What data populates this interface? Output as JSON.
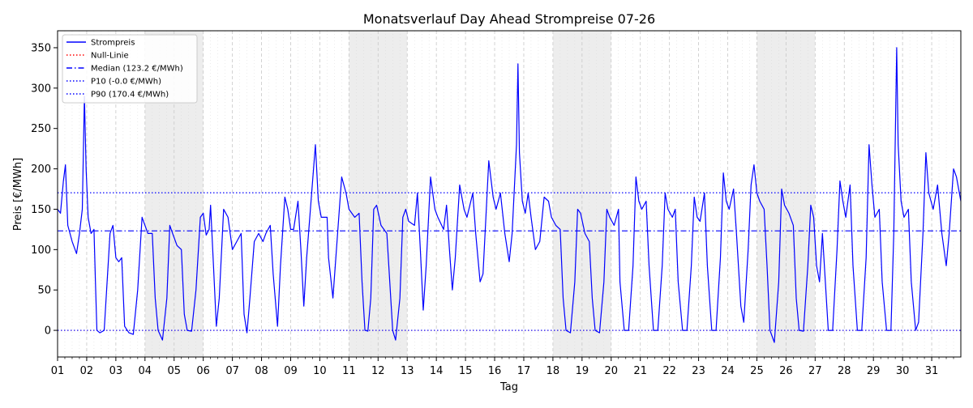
{
  "chart_data": {
    "type": "line",
    "title": "Monatsverlauf Day Ahead Strompreise 07-26",
    "xlabel": "Tag",
    "ylabel": "Preis [€/MWh]",
    "xlim": [
      1,
      32
    ],
    "ylim": [
      -33,
      371
    ],
    "y_ticks": [
      0,
      50,
      100,
      150,
      200,
      250,
      300,
      350
    ],
    "x_tick_labels": [
      "01",
      "02",
      "03",
      "04",
      "05",
      "06",
      "07",
      "08",
      "09",
      "10",
      "11",
      "12",
      "13",
      "14",
      "15",
      "16",
      "17",
      "18",
      "19",
      "20",
      "21",
      "22",
      "23",
      "24",
      "25",
      "26",
      "27",
      "28",
      "29",
      "30",
      "31"
    ],
    "grid": "dashed vertical day lines, dotted minor grid",
    "weekend_shading": [
      [
        4,
        6
      ],
      [
        11,
        13
      ],
      [
        18,
        20
      ],
      [
        25,
        27
      ]
    ],
    "legend_position": "top-left",
    "legend": [
      {
        "label": "Strompreis",
        "color": "#0000ff",
        "style": "solid"
      },
      {
        "label": "Null-Linie",
        "color": "#ff0000",
        "style": "dotted"
      },
      {
        "label": "Median (123.2 €/MWh)",
        "color": "#0000ff",
        "style": "dashdot"
      },
      {
        "label": "P10 (-0.0 €/MWh)",
        "color": "#0000ff",
        "style": "dotted"
      },
      {
        "label": "P90 (170.4 €/MWh)",
        "color": "#0000ff",
        "style": "dotted"
      }
    ],
    "reference_lines": [
      {
        "name": "Null-Linie",
        "y": 0,
        "color": "#ff0000",
        "style": "dotted"
      },
      {
        "name": "Median",
        "y": 123.2,
        "color": "#0000ff",
        "style": "dashdot"
      },
      {
        "name": "P10",
        "y": 0,
        "color": "#0000ff",
        "style": "dotted"
      },
      {
        "name": "P90",
        "y": 170.4,
        "color": "#0000ff",
        "style": "dotted"
      }
    ],
    "series": [
      {
        "name": "Strompreis",
        "color": "#0000ff",
        "points": [
          [
            1.0,
            150
          ],
          [
            1.1,
            145
          ],
          [
            1.2,
            185
          ],
          [
            1.27,
            205
          ],
          [
            1.35,
            130
          ],
          [
            1.5,
            110
          ],
          [
            1.65,
            95
          ],
          [
            1.75,
            120
          ],
          [
            1.85,
            150
          ],
          [
            1.92,
            290
          ],
          [
            1.98,
            200
          ],
          [
            2.05,
            140
          ],
          [
            2.15,
            120
          ],
          [
            2.25,
            125
          ],
          [
            2.3,
            60
          ],
          [
            2.35,
            0
          ],
          [
            2.45,
            -3
          ],
          [
            2.6,
            0
          ],
          [
            2.7,
            60
          ],
          [
            2.8,
            120
          ],
          [
            2.9,
            130
          ],
          [
            3.0,
            90
          ],
          [
            3.1,
            85
          ],
          [
            3.2,
            90
          ],
          [
            3.3,
            5
          ],
          [
            3.45,
            -3
          ],
          [
            3.6,
            -5
          ],
          [
            3.75,
            50
          ],
          [
            3.9,
            140
          ],
          [
            4.0,
            130
          ],
          [
            4.1,
            120
          ],
          [
            4.25,
            120
          ],
          [
            4.35,
            40
          ],
          [
            4.45,
            0
          ],
          [
            4.6,
            -12
          ],
          [
            4.75,
            40
          ],
          [
            4.85,
            130
          ],
          [
            4.95,
            120
          ],
          [
            5.1,
            105
          ],
          [
            5.25,
            100
          ],
          [
            5.35,
            20
          ],
          [
            5.45,
            0
          ],
          [
            5.6,
            -1
          ],
          [
            5.75,
            50
          ],
          [
            5.9,
            140
          ],
          [
            6.0,
            145
          ],
          [
            6.1,
            118
          ],
          [
            6.2,
            125
          ],
          [
            6.25,
            155
          ],
          [
            6.35,
            80
          ],
          [
            6.45,
            5
          ],
          [
            6.55,
            40
          ],
          [
            6.7,
            150
          ],
          [
            6.85,
            140
          ],
          [
            7.0,
            100
          ],
          [
            7.15,
            110
          ],
          [
            7.3,
            120
          ],
          [
            7.4,
            20
          ],
          [
            7.5,
            -3
          ],
          [
            7.6,
            40
          ],
          [
            7.75,
            110
          ],
          [
            7.9,
            120
          ],
          [
            8.05,
            110
          ],
          [
            8.15,
            120
          ],
          [
            8.3,
            130
          ],
          [
            8.4,
            70
          ],
          [
            8.55,
            5
          ],
          [
            8.65,
            80
          ],
          [
            8.8,
            165
          ],
          [
            8.9,
            150
          ],
          [
            9.0,
            125
          ],
          [
            9.1,
            125
          ],
          [
            9.25,
            160
          ],
          [
            9.35,
            100
          ],
          [
            9.45,
            30
          ],
          [
            9.55,
            90
          ],
          [
            9.7,
            160
          ],
          [
            9.85,
            230
          ],
          [
            9.95,
            160
          ],
          [
            10.05,
            140
          ],
          [
            10.25,
            140
          ],
          [
            10.3,
            90
          ],
          [
            10.45,
            40
          ],
          [
            10.55,
            90
          ],
          [
            10.75,
            190
          ],
          [
            10.9,
            170
          ],
          [
            11.0,
            150
          ],
          [
            11.2,
            140
          ],
          [
            11.35,
            145
          ],
          [
            11.45,
            60
          ],
          [
            11.55,
            0
          ],
          [
            11.65,
            -1
          ],
          [
            11.75,
            40
          ],
          [
            11.85,
            150
          ],
          [
            11.95,
            155
          ],
          [
            12.1,
            130
          ],
          [
            12.3,
            120
          ],
          [
            12.4,
            60
          ],
          [
            12.5,
            0
          ],
          [
            12.6,
            -12
          ],
          [
            12.75,
            40
          ],
          [
            12.85,
            140
          ],
          [
            12.95,
            150
          ],
          [
            13.05,
            135
          ],
          [
            13.25,
            130
          ],
          [
            13.35,
            170
          ],
          [
            13.45,
            100
          ],
          [
            13.55,
            25
          ],
          [
            13.65,
            80
          ],
          [
            13.8,
            190
          ],
          [
            13.95,
            150
          ],
          [
            14.05,
            140
          ],
          [
            14.25,
            125
          ],
          [
            14.35,
            155
          ],
          [
            14.45,
            100
          ],
          [
            14.55,
            50
          ],
          [
            14.65,
            90
          ],
          [
            14.8,
            180
          ],
          [
            14.95,
            150
          ],
          [
            15.05,
            140
          ],
          [
            15.25,
            170
          ],
          [
            15.35,
            120
          ],
          [
            15.5,
            60
          ],
          [
            15.6,
            70
          ],
          [
            15.8,
            210
          ],
          [
            15.95,
            165
          ],
          [
            16.05,
            150
          ],
          [
            16.2,
            170
          ],
          [
            16.35,
            120
          ],
          [
            16.5,
            85
          ],
          [
            16.6,
            120
          ],
          [
            16.75,
            230
          ],
          [
            16.8,
            330
          ],
          [
            16.85,
            220
          ],
          [
            16.95,
            160
          ],
          [
            17.05,
            145
          ],
          [
            17.15,
            170
          ],
          [
            17.25,
            140
          ],
          [
            17.4,
            100
          ],
          [
            17.55,
            110
          ],
          [
            17.7,
            165
          ],
          [
            17.85,
            160
          ],
          [
            17.95,
            140
          ],
          [
            18.1,
            130
          ],
          [
            18.25,
            125
          ],
          [
            18.35,
            40
          ],
          [
            18.45,
            0
          ],
          [
            18.6,
            -3
          ],
          [
            18.75,
            60
          ],
          [
            18.85,
            150
          ],
          [
            18.95,
            145
          ],
          [
            19.1,
            120
          ],
          [
            19.25,
            110
          ],
          [
            19.35,
            40
          ],
          [
            19.45,
            0
          ],
          [
            19.6,
            -3
          ],
          [
            19.75,
            60
          ],
          [
            19.85,
            150
          ],
          [
            19.95,
            140
          ],
          [
            20.1,
            130
          ],
          [
            20.25,
            150
          ],
          [
            20.3,
            60
          ],
          [
            20.45,
            0
          ],
          [
            20.6,
            0
          ],
          [
            20.75,
            80
          ],
          [
            20.85,
            190
          ],
          [
            20.95,
            160
          ],
          [
            21.05,
            150
          ],
          [
            21.2,
            160
          ],
          [
            21.3,
            80
          ],
          [
            21.45,
            0
          ],
          [
            21.6,
            0
          ],
          [
            21.75,
            80
          ],
          [
            21.85,
            170
          ],
          [
            21.95,
            150
          ],
          [
            22.1,
            140
          ],
          [
            22.2,
            150
          ],
          [
            22.3,
            60
          ],
          [
            22.45,
            0
          ],
          [
            22.6,
            0
          ],
          [
            22.75,
            80
          ],
          [
            22.85,
            165
          ],
          [
            22.95,
            140
          ],
          [
            23.05,
            135
          ],
          [
            23.2,
            170
          ],
          [
            23.3,
            80
          ],
          [
            23.45,
            0
          ],
          [
            23.6,
            0
          ],
          [
            23.75,
            90
          ],
          [
            23.85,
            195
          ],
          [
            23.95,
            160
          ],
          [
            24.05,
            150
          ],
          [
            24.2,
            175
          ],
          [
            24.3,
            120
          ],
          [
            24.45,
            30
          ],
          [
            24.55,
            10
          ],
          [
            24.7,
            100
          ],
          [
            24.8,
            180
          ],
          [
            24.9,
            205
          ],
          [
            25.0,
            170
          ],
          [
            25.1,
            160
          ],
          [
            25.25,
            150
          ],
          [
            25.35,
            80
          ],
          [
            25.45,
            0
          ],
          [
            25.6,
            -15
          ],
          [
            25.75,
            60
          ],
          [
            25.85,
            175
          ],
          [
            25.95,
            155
          ],
          [
            26.1,
            145
          ],
          [
            26.25,
            130
          ],
          [
            26.35,
            40
          ],
          [
            26.45,
            0
          ],
          [
            26.6,
            -1
          ],
          [
            26.75,
            80
          ],
          [
            26.85,
            155
          ],
          [
            26.95,
            140
          ],
          [
            27.05,
            80
          ],
          [
            27.15,
            60
          ],
          [
            27.25,
            120
          ],
          [
            27.35,
            60
          ],
          [
            27.45,
            0
          ],
          [
            27.6,
            0
          ],
          [
            27.75,
            100
          ],
          [
            27.85,
            185
          ],
          [
            27.95,
            160
          ],
          [
            28.05,
            140
          ],
          [
            28.2,
            180
          ],
          [
            28.3,
            80
          ],
          [
            28.45,
            0
          ],
          [
            28.6,
            0
          ],
          [
            28.75,
            90
          ],
          [
            28.85,
            230
          ],
          [
            28.95,
            180
          ],
          [
            29.05,
            140
          ],
          [
            29.2,
            150
          ],
          [
            29.3,
            60
          ],
          [
            29.45,
            0
          ],
          [
            29.6,
            0
          ],
          [
            29.7,
            120
          ],
          [
            29.8,
            350
          ],
          [
            29.85,
            230
          ],
          [
            29.95,
            160
          ],
          [
            30.05,
            140
          ],
          [
            30.2,
            150
          ],
          [
            30.3,
            60
          ],
          [
            30.45,
            0
          ],
          [
            30.55,
            10
          ],
          [
            30.7,
            120
          ],
          [
            30.8,
            220
          ],
          [
            30.9,
            170
          ],
          [
            31.05,
            150
          ],
          [
            31.2,
            180
          ],
          [
            31.35,
            120
          ],
          [
            31.5,
            80
          ],
          [
            31.6,
            120
          ],
          [
            31.75,
            200
          ],
          [
            31.85,
            190
          ],
          [
            32.0,
            160
          ]
        ]
      }
    ]
  }
}
